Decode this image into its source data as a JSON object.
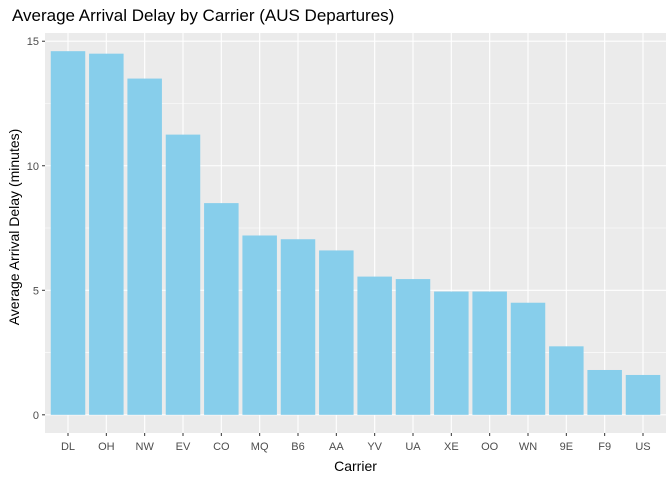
{
  "chart_data": {
    "type": "bar",
    "title": "Average Arrival Delay by Carrier (AUS Departures)",
    "xlabel": "Carrier",
    "ylabel": "Average Arrival Delay (minutes)",
    "categories": [
      "DL",
      "OH",
      "NW",
      "EV",
      "CO",
      "MQ",
      "B6",
      "AA",
      "YV",
      "UA",
      "XE",
      "OO",
      "WN",
      "9E",
      "F9",
      "US"
    ],
    "values": [
      14.6,
      14.5,
      13.5,
      11.25,
      8.5,
      7.2,
      7.05,
      6.6,
      5.55,
      5.45,
      4.95,
      4.95,
      4.5,
      2.75,
      1.8,
      1.6
    ],
    "yticks": [
      0,
      5,
      10,
      15
    ],
    "ylim": [
      -0.73,
      15.33
    ],
    "grid": true,
    "legend": "none",
    "colors": {
      "bar": "#87CEEB",
      "panel_background": "#EBEBEB",
      "grid": "#FFFFFF",
      "tick_text": "#4D4D4D",
      "tick_mark": "#333333"
    }
  }
}
